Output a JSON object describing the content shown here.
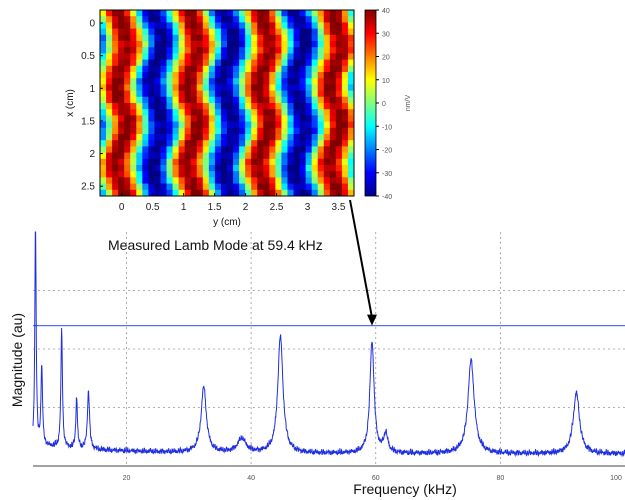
{
  "chart_data": [
    {
      "type": "heatmap",
      "title": "",
      "xlabel": "y (cm)",
      "ylabel": "x (cm)",
      "x_ticks": [
        "0",
        "0.5",
        "1",
        "1.5",
        "2",
        "2.5",
        "3",
        "3.5"
      ],
      "y_ticks": [
        "0",
        "0.5",
        "1",
        "1.5",
        "2",
        "2.5"
      ],
      "xlim": [
        -0.35,
        3.75
      ],
      "ylim": [
        -0.2,
        2.65
      ],
      "colorbar": {
        "label": "nm/V",
        "range": [
          -40,
          40
        ],
        "ticks": [
          "40",
          "30",
          "20",
          "10",
          "0",
          "-10",
          "-20",
          "-30",
          "-40"
        ]
      },
      "pattern": {
        "description_free": true,
        "wavelength_cm": 1.15,
        "red_stripe_centers_cm": [
          0.0,
          1.15,
          2.3,
          3.45
        ],
        "amplitude_nm_per_V": 40
      }
    },
    {
      "type": "line",
      "xlabel": "Frequency (kHz)",
      "ylabel": "Magnitude (au)",
      "x_ticks": [
        "20",
        "40",
        "60",
        "80",
        "100"
      ],
      "xlim": [
        5,
        100
      ],
      "ylim": [
        0,
        1
      ],
      "grid": true,
      "reference_line": {
        "y": 0.6,
        "color": "#5b6cf0"
      },
      "annotation": {
        "text": "Measured Lamb Mode at 59.4 kHz",
        "x": 59.4
      },
      "color": "#1f2fe0",
      "peaks": [
        {
          "x": 5.4,
          "y": 1.0,
          "w": 0.12
        },
        {
          "x": 6.4,
          "y": 0.34,
          "w": 0.15
        },
        {
          "x": 9.6,
          "y": 0.5,
          "w": 0.15
        },
        {
          "x": 12.0,
          "y": 0.22,
          "w": 0.15
        },
        {
          "x": 13.9,
          "y": 0.25,
          "w": 0.2
        },
        {
          "x": 32.4,
          "y": 0.28,
          "w": 0.5
        },
        {
          "x": 38.5,
          "y": 0.06,
          "w": 0.8
        },
        {
          "x": 44.7,
          "y": 0.5,
          "w": 0.5
        },
        {
          "x": 59.4,
          "y": 0.48,
          "w": 0.4
        },
        {
          "x": 61.6,
          "y": 0.08,
          "w": 0.4
        },
        {
          "x": 75.3,
          "y": 0.4,
          "w": 0.6
        },
        {
          "x": 92.2,
          "y": 0.26,
          "w": 0.6
        }
      ]
    }
  ]
}
